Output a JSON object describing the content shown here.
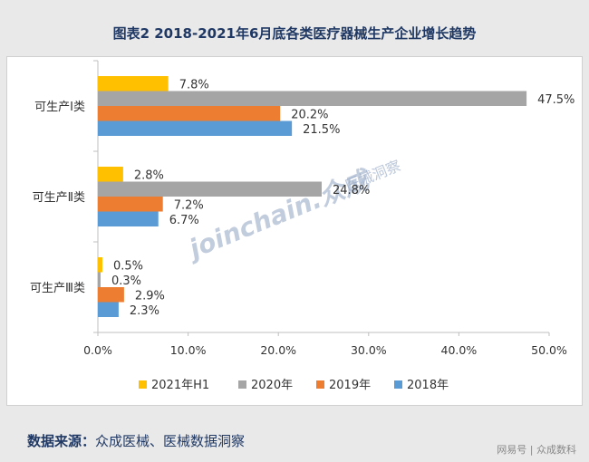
{
  "title": "图表2 2018-2021年6月底各类医疗器械生产企业增长趋势",
  "source": {
    "label": "数据来源：",
    "text": "众成医械、医械数据洞察"
  },
  "footer": "网易号 | 众成数科",
  "watermark": {
    "text": "joinchain.众成",
    "cn": "医械洞察"
  },
  "colors": {
    "2021年H1": "#ffc000",
    "2020年": "#a5a5a5",
    "2019年": "#ed7d31",
    "2018年": "#5b9bd5"
  },
  "chart_data": {
    "type": "bar",
    "orientation": "horizontal",
    "categories": [
      "可生产Ⅰ类",
      "可生产Ⅱ类",
      "可生产Ⅲ类"
    ],
    "series": [
      {
        "name": "2021年H1",
        "values": [
          7.8,
          2.8,
          0.5
        ],
        "labels": [
          "7.8%",
          "2.8%",
          "0.5%"
        ]
      },
      {
        "name": "2020年",
        "values": [
          47.5,
          24.8,
          0.3
        ],
        "labels": [
          "47.5%",
          "24.8%",
          "0.3%"
        ]
      },
      {
        "name": "2019年",
        "values": [
          20.2,
          7.2,
          2.9
        ],
        "labels": [
          "20.2%",
          "7.2%",
          "2.9%"
        ]
      },
      {
        "name": "2018年",
        "values": [
          21.5,
          6.7,
          2.3
        ],
        "labels": [
          "21.5%",
          "6.7%",
          "2.3%"
        ]
      }
    ],
    "xlim": [
      0,
      50
    ],
    "xticks": [
      "0.0%",
      "10.0%",
      "20.0%",
      "30.0%",
      "40.0%",
      "50.0%"
    ],
    "legend": [
      "2021年H1",
      "2020年",
      "2019年",
      "2018年"
    ],
    "legend_position": "bottom"
  }
}
